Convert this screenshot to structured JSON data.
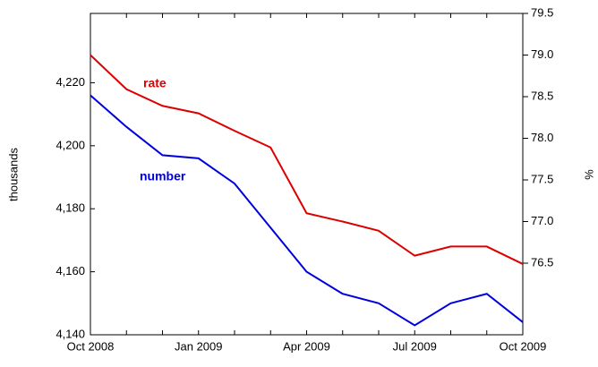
{
  "chart_data": {
    "type": "line",
    "categories": [
      "Oct 2008",
      null,
      null,
      "Jan 2009",
      null,
      null,
      "Apr 2009",
      null,
      null,
      "Jul 2009",
      null,
      null,
      "Oct 2009"
    ],
    "series": [
      {
        "name": "number",
        "color": "#0000dd",
        "axis": "y",
        "values": [
          4216,
          4206,
          4197,
          4196,
          4188,
          4174,
          4160,
          4153,
          4150,
          4143,
          4150,
          4153,
          4144
        ]
      },
      {
        "name": "rate",
        "color": "#dd0000",
        "axis": "y2",
        "values": [
          79.0,
          78.59,
          78.39,
          78.3,
          78.09,
          77.89,
          77.1,
          77.0,
          76.89,
          76.59,
          76.7,
          76.7,
          76.49
        ]
      }
    ],
    "annotations": [
      {
        "text": "rate",
        "color": "#dd0000"
      },
      {
        "text": "number",
        "color": "#0000dd"
      }
    ],
    "ylabel": "thousands",
    "y2label": "%",
    "ylim": [
      4140,
      4242
    ],
    "yticks": [
      {
        "value": 4140,
        "label": "4,140"
      },
      {
        "value": 4160,
        "label": "4,160"
      },
      {
        "value": 4180,
        "label": "4,180"
      },
      {
        "value": 4200,
        "label": "4,200"
      },
      {
        "value": 4220,
        "label": "4,220"
      }
    ],
    "y2lim": [
      75.64,
      79.5
    ],
    "y2ticks": [
      76.5,
      {
        "value": 77,
        "label": "77.0"
      },
      77.5,
      {
        "value": 78,
        "label": "78.0"
      },
      78.5,
      {
        "value": 79,
        "label": "79.0"
      },
      79.5
    ]
  }
}
